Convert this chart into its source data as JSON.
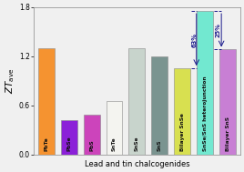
{
  "categories": [
    "PbTe",
    "PbSe",
    "PbS",
    "SnTe",
    "SnSe",
    "SnS",
    "Bilayer SnSe",
    "SnSe/SnS heterojunction",
    "Bilayer SnS"
  ],
  "values": [
    1.3,
    0.42,
    0.48,
    0.65,
    1.3,
    1.2,
    1.05,
    1.75,
    1.28
  ],
  "colors": [
    "#F59330",
    "#8B20D8",
    "#CC44BB",
    "#F4F4F0",
    "#C8D4CC",
    "#7A9490",
    "#D8E050",
    "#72E8D0",
    "#C87FD4"
  ],
  "xlabel": "Lead and tin chalcogenides",
  "ylim": [
    0,
    1.8
  ],
  "yticks": [
    0.0,
    0.6,
    1.2,
    1.8
  ],
  "bg_color": "#F0F0F0",
  "edge_color": "#888888",
  "annot_color": "#1A1A8C",
  "bar_label_fontsize": 4.2,
  "bar_label_color": "#111111"
}
